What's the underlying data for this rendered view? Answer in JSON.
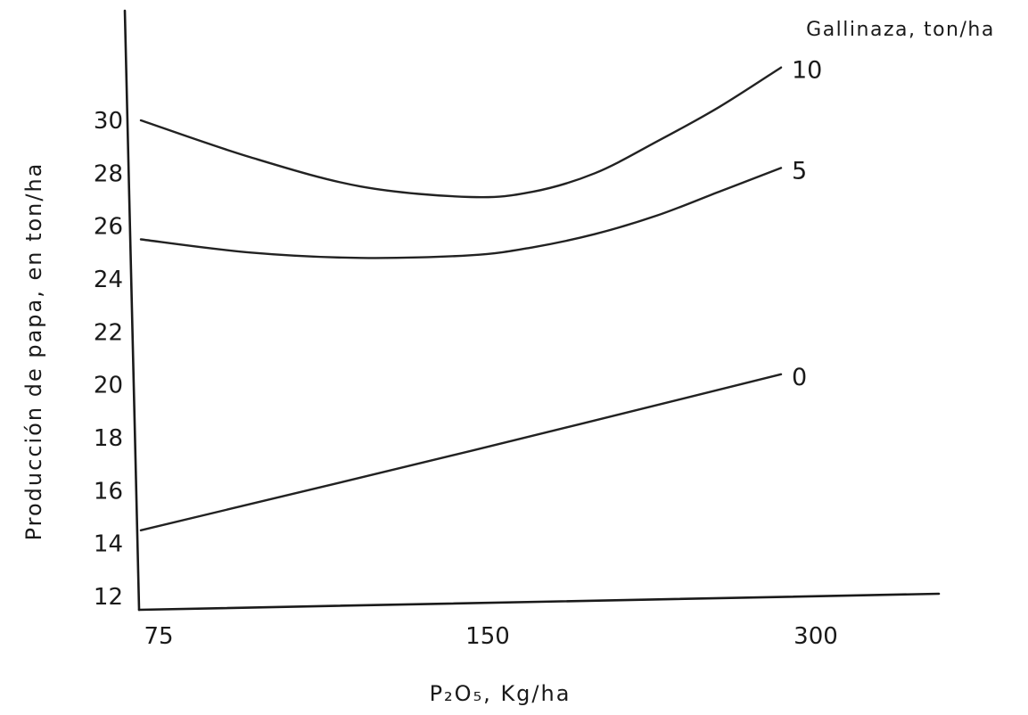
{
  "chart_data": {
    "type": "line",
    "title": "",
    "xlabel": "P₂O₅, Kg/ha",
    "ylabel": "Producción de papa, en ton/ha",
    "legend_title": "Gallinaza, ton/ha",
    "x_scale": "categorical",
    "categories": [
      "75",
      "150",
      "300"
    ],
    "yticks": [
      "12",
      "14",
      "16",
      "18",
      "20",
      "22",
      "24",
      "26",
      "28",
      "30"
    ],
    "ylim": [
      12,
      32
    ],
    "grid": false,
    "series": [
      {
        "name": "10",
        "points": [
          [
            75,
            30.0
          ],
          [
            100,
            28.6
          ],
          [
            125,
            27.5
          ],
          [
            150,
            27.1
          ],
          [
            175,
            27.3
          ],
          [
            200,
            28.0
          ],
          [
            225,
            29.2
          ],
          [
            250,
            30.5
          ],
          [
            275,
            32.0
          ]
        ]
      },
      {
        "name": "5",
        "points": [
          [
            75,
            25.5
          ],
          [
            100,
            25.0
          ],
          [
            125,
            24.8
          ],
          [
            150,
            24.9
          ],
          [
            175,
            25.2
          ],
          [
            200,
            25.7
          ],
          [
            225,
            26.4
          ],
          [
            250,
            27.3
          ],
          [
            275,
            28.2
          ]
        ]
      },
      {
        "name": "0",
        "points": [
          [
            75,
            14.5
          ],
          [
            150,
            17.5
          ],
          [
            275,
            20.4
          ]
        ]
      }
    ],
    "colors": {
      "ink": "#1a1a1a",
      "background": "#ffffff"
    }
  }
}
